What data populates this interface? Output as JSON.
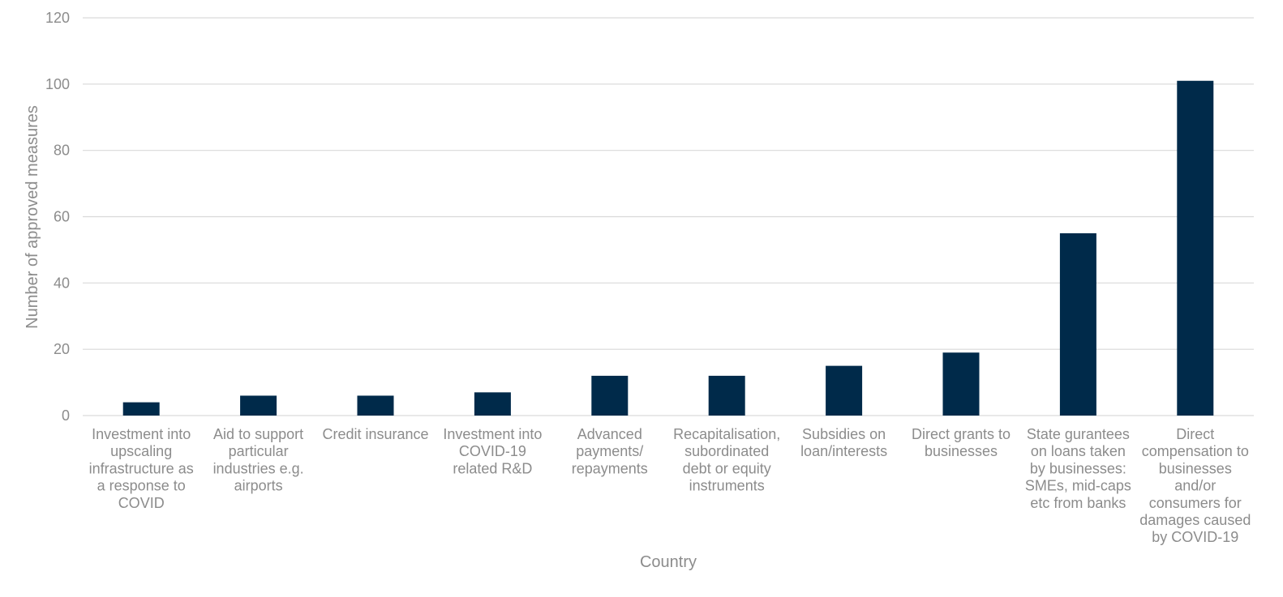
{
  "chart_data": {
    "type": "bar",
    "title": "",
    "xlabel": "Country",
    "ylabel": "Number of approved measures",
    "ylim": [
      0,
      120
    ],
    "yticks": [
      0,
      20,
      40,
      60,
      80,
      100,
      120
    ],
    "grid": true,
    "legend": "none",
    "bar_color": "#002a4a",
    "categories": [
      [
        "Investment into",
        "upscaling",
        "infrastructure as",
        "a response to",
        "COVID"
      ],
      [
        "Aid to support",
        "particular",
        "industries e.g.",
        "airports"
      ],
      [
        "Credit insurance"
      ],
      [
        "Investment into",
        "COVID-19",
        "related R&D"
      ],
      [
        "Advanced",
        "payments/",
        "repayments"
      ],
      [
        "Recapitalisation,",
        "subordinated",
        "debt or equity",
        "instruments"
      ],
      [
        "Subsidies on",
        "loan/interests"
      ],
      [
        "Direct grants to",
        "businesses"
      ],
      [
        "State gurantees",
        "on loans taken",
        "by businesses:",
        "SMEs, mid-caps",
        "etc from banks"
      ],
      [
        "Direct",
        "compensation to",
        "businesses",
        "and/or",
        "consumers for",
        "damages caused",
        "by COVID-19"
      ]
    ],
    "values": [
      4,
      6,
      6,
      7,
      12,
      12,
      15,
      19,
      55,
      101
    ]
  }
}
